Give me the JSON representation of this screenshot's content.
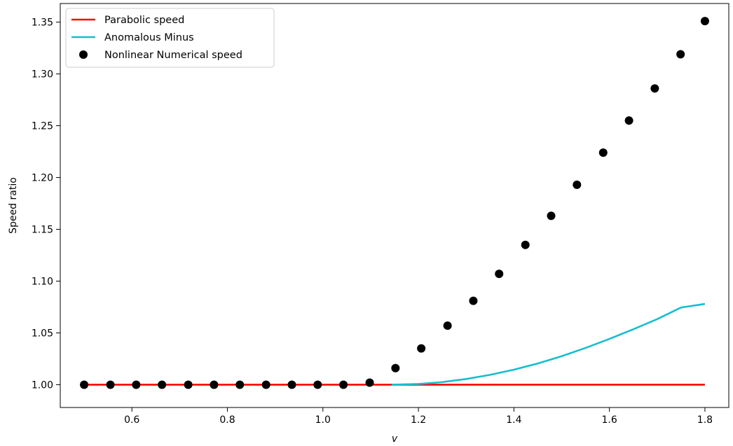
{
  "chart_data": {
    "type": "line",
    "xlabel": "v",
    "ylabel": "Speed ratio",
    "xlim": [
      0.45,
      1.85
    ],
    "ylim": [
      0.978,
      1.368
    ],
    "x_ticks": [
      0.6,
      0.8,
      1.0,
      1.2,
      1.4,
      1.6,
      1.8
    ],
    "x_tick_labels": [
      "0.6",
      "0.8",
      "1.0",
      "1.2",
      "1.4",
      "1.6",
      "1.8"
    ],
    "y_ticks": [
      1.0,
      1.05,
      1.1,
      1.15,
      1.2,
      1.25,
      1.3,
      1.35
    ],
    "y_tick_labels": [
      "1.00",
      "1.05",
      "1.10",
      "1.15",
      "1.20",
      "1.25",
      "1.30",
      "1.35"
    ],
    "grid": false,
    "legend_placement": "upper-left",
    "series": [
      {
        "name": "Parabolic speed",
        "kind": "line",
        "color": "#ff0000",
        "x": [
          0.5,
          1.8
        ],
        "y": [
          1.0,
          1.0
        ]
      },
      {
        "name": "Anomalous Minus",
        "kind": "line",
        "color": "#17becf",
        "x": [
          1.144,
          1.2,
          1.25,
          1.3,
          1.35,
          1.4,
          1.45,
          1.5,
          1.55,
          1.6,
          1.65,
          1.7,
          1.75,
          1.8
        ],
        "y": [
          1.0,
          1.0007,
          1.0025,
          1.0055,
          1.0095,
          1.0145,
          1.0205,
          1.0275,
          1.0355,
          1.0442,
          1.0535,
          1.0633,
          1.0745,
          1.078
        ]
      },
      {
        "name": "Nonlinear Numerical speed",
        "kind": "scatter",
        "color": "#000000",
        "x": [
          0.5,
          0.555,
          0.609,
          0.663,
          0.718,
          0.772,
          0.826,
          0.881,
          0.935,
          0.989,
          1.043,
          1.098,
          1.152,
          1.206,
          1.261,
          1.315,
          1.369,
          1.424,
          1.478,
          1.532,
          1.587,
          1.641,
          1.695,
          1.749,
          1.8
        ],
        "y": [
          1.0,
          1.0,
          1.0,
          1.0,
          1.0,
          1.0,
          1.0,
          1.0,
          1.0,
          1.0,
          1.0,
          1.002,
          1.016,
          1.035,
          1.057,
          1.081,
          1.107,
          1.135,
          1.163,
          1.193,
          1.224,
          1.255,
          1.286,
          1.319,
          1.351
        ]
      }
    ]
  }
}
